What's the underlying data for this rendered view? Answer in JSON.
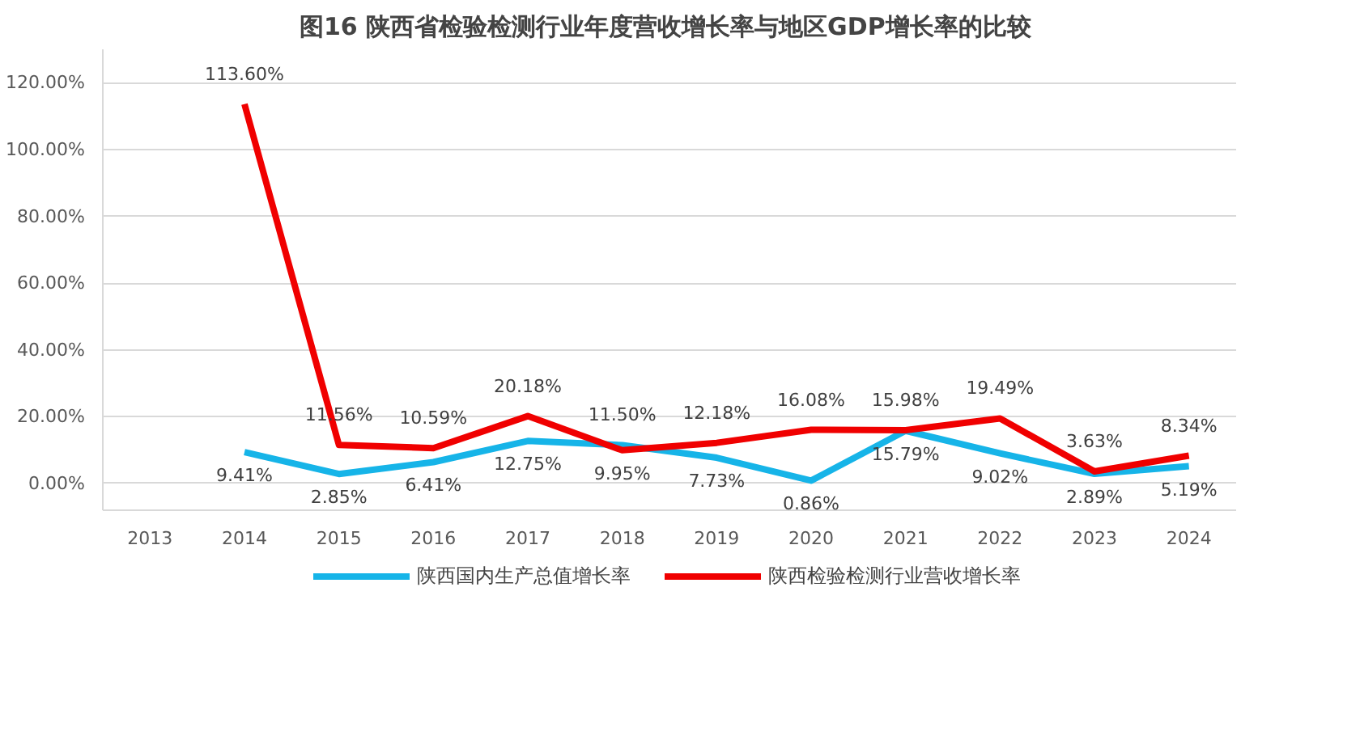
{
  "chart_data": {
    "type": "line",
    "title": "图16  陕西省检验检测行业年度营收增长率与地区GDP增长率的比较",
    "categories": [
      "2013",
      "2014",
      "2015",
      "2016",
      "2017",
      "2018",
      "2019",
      "2020",
      "2021",
      "2022",
      "2023",
      "2024"
    ],
    "series": [
      {
        "name": "陕西国内生产总值增长率",
        "color": "#16b4e8",
        "values": [
          null,
          9.41,
          2.85,
          6.41,
          12.75,
          11.5,
          7.73,
          0.86,
          15.79,
          9.02,
          2.89,
          5.19
        ],
        "value_labels": [
          null,
          "9.41%",
          "2.85%",
          "6.41%",
          "12.75%",
          "11.50%",
          "7.73%",
          "0.86%",
          "15.79%",
          "9.02%",
          "2.89%",
          "5.19%"
        ]
      },
      {
        "name": "陕西检验检测行业营收增长率",
        "color": "#f00000",
        "values": [
          null,
          113.6,
          11.56,
          10.59,
          20.18,
          9.95,
          12.18,
          16.08,
          15.98,
          19.49,
          3.63,
          8.34
        ],
        "value_labels": [
          null,
          "113.60%",
          "11.56%",
          "10.59%",
          "20.18%",
          "9.95%",
          "12.18%",
          "16.08%",
          "15.98%",
          "19.49%",
          "3.63%",
          "8.34%"
        ]
      }
    ],
    "ylim": [
      -8,
      130
    ],
    "yticks": [
      {
        "value": 0,
        "label": "0.00%"
      },
      {
        "value": 20,
        "label": "20.00%"
      },
      {
        "value": 40,
        "label": "40.00%"
      },
      {
        "value": 60,
        "label": "60.00%"
      },
      {
        "value": 80,
        "label": "80.00%"
      },
      {
        "value": 100,
        "label": "100.00%"
      },
      {
        "value": 120,
        "label": "120.00%"
      }
    ],
    "grid": "y",
    "legend": "bottom",
    "marker": "none",
    "line_style": "solid"
  }
}
